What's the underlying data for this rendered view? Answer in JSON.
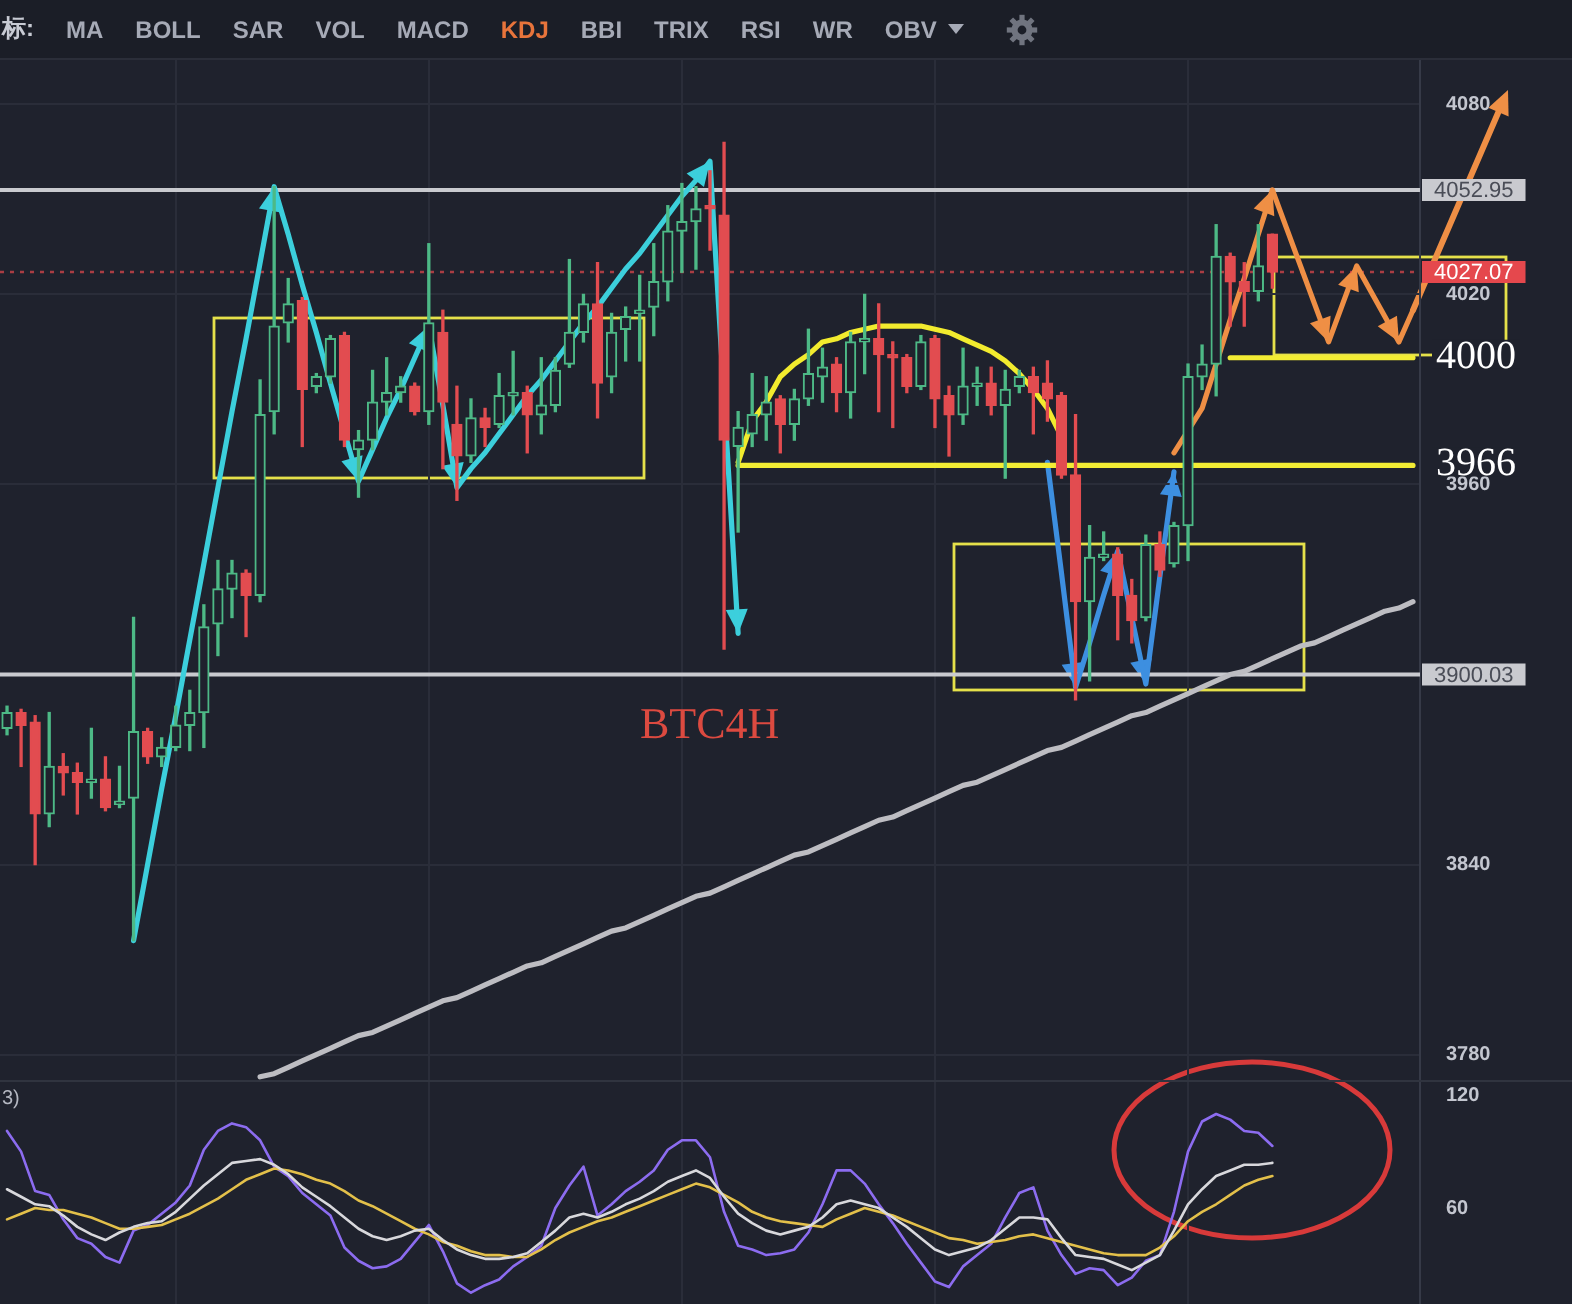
{
  "chart_data": [
    {
      "type": "other",
      "title": "标:",
      "categories": [
        "MA",
        "BOLL",
        "SAR",
        "VOL",
        "MACD",
        "KDJ",
        "BBI",
        "TRIX",
        "RSI",
        "WR",
        "OBV"
      ],
      "colors": [
        "#a6aab6",
        "#a6aab6",
        "#a6aab6",
        "#a6aab6",
        "#a6aab6",
        "#e8743b",
        "#a6aab6",
        "#a6aab6",
        "#a6aab6",
        "#a6aab6",
        "#a6aab6"
      ]
    },
    {
      "type": "candlestick",
      "categories": [
        null,
        null,
        null,
        null,
        null,
        null,
        null,
        null,
        null,
        null,
        null,
        null,
        null,
        null,
        null,
        null,
        null,
        null,
        null,
        null,
        null,
        null,
        null,
        null,
        null,
        null,
        null,
        null,
        null,
        null,
        null,
        null,
        null,
        null,
        null,
        null,
        null,
        null,
        null,
        null,
        null,
        null,
        null,
        null,
        null,
        null,
        null,
        null,
        null,
        null,
        null,
        null,
        null,
        null,
        null,
        null,
        null,
        null,
        null,
        null,
        null,
        null,
        null,
        null,
        null,
        null,
        null,
        null,
        null,
        null,
        null,
        null,
        null,
        null,
        null,
        null,
        null,
        null,
        null,
        null,
        null,
        null,
        null,
        null,
        null,
        null,
        null,
        null,
        null,
        null,
        null,
        null,
        null,
        null,
        null,
        null,
        null,
        null,
        null,
        null,
        null
      ],
      "ohlc": [
        [
          3883,
          3890,
          3881,
          3888
        ],
        [
          3888,
          3889,
          3871,
          3884
        ],
        [
          3885,
          3887,
          3840,
          3856
        ],
        [
          3856,
          3888,
          3852,
          3871
        ],
        [
          3871,
          3875,
          3862,
          3869
        ],
        [
          3869,
          3872,
          3856,
          3866
        ],
        [
          3866,
          3883,
          3861,
          3867
        ],
        [
          3867,
          3874,
          3857,
          3858
        ],
        [
          3859,
          3871,
          3858,
          3860
        ],
        [
          3861,
          3918,
          3816,
          3882
        ],
        [
          3882,
          3883,
          3872,
          3874
        ],
        [
          3874,
          3880,
          3871,
          3877
        ],
        [
          3877,
          3890,
          3876,
          3884
        ],
        [
          3884,
          3895,
          3876,
          3888
        ],
        [
          3888,
          3922,
          3877,
          3915
        ],
        [
          3916,
          3936,
          3906,
          3927
        ],
        [
          3927,
          3936,
          3918,
          3932
        ],
        [
          3932,
          3933,
          3912,
          3925
        ],
        [
          3925,
          3993,
          3923,
          3982
        ],
        [
          3983,
          4054,
          3976,
          4010
        ],
        [
          4011,
          4025,
          4005,
          4017
        ],
        [
          4018,
          4019,
          3972,
          3990
        ],
        [
          3991,
          3995,
          3989,
          3994
        ],
        [
          3994,
          4007,
          3992,
          4006
        ],
        [
          4007,
          4008,
          3972,
          3974
        ],
        [
          3971,
          3977,
          3956,
          3974
        ],
        [
          3974,
          3996,
          3971,
          3986
        ],
        [
          3986,
          4000,
          3982,
          3989
        ],
        [
          3989,
          3994,
          3986,
          3991
        ],
        [
          3991,
          3992,
          3982,
          3983
        ],
        [
          3983,
          4036,
          3979,
          4011
        ],
        [
          4008,
          4015,
          3965,
          3986
        ],
        [
          3979,
          3991,
          3955,
          3969
        ],
        [
          3969,
          3987,
          3967,
          3981
        ],
        [
          3981,
          3984,
          3972,
          3978
        ],
        [
          3979,
          3995,
          3978,
          3988
        ],
        [
          3988,
          4002,
          3982,
          3989
        ],
        [
          3989,
          3991,
          3970,
          3982
        ],
        [
          3982,
          4000,
          3976,
          3985
        ],
        [
          3985,
          4000,
          3983,
          3996
        ],
        [
          3998,
          4031,
          3997,
          4008
        ],
        [
          4008,
          4020,
          4005,
          4017
        ],
        [
          4017,
          4030,
          3981,
          3992
        ],
        [
          3994,
          4014,
          3989,
          4008
        ],
        [
          4009,
          4016,
          3999,
          4013
        ],
        [
          4014,
          4026,
          3999,
          4015
        ],
        [
          4016,
          4036,
          4007,
          4024
        ],
        [
          4024,
          4048,
          4018,
          4040
        ],
        [
          4040,
          4055,
          4027,
          4043
        ],
        [
          4043,
          4054,
          4028,
          4047
        ],
        [
          4048,
          4059,
          4034,
          4047
        ],
        [
          4045,
          4068,
          3908,
          3974
        ],
        [
          3972,
          3983,
          3945,
          3978
        ],
        [
          3976,
          3995,
          3972,
          3982
        ],
        [
          3982,
          3994,
          3974,
          3986
        ],
        [
          3987,
          3988,
          3970,
          3979
        ],
        [
          3979,
          3990,
          3974,
          3987
        ],
        [
          3987,
          4009,
          3985,
          3995
        ],
        [
          3994,
          4003,
          3986,
          3997
        ],
        [
          3998,
          4000,
          3983,
          3989
        ],
        [
          3989,
          4008,
          3981,
          4005
        ],
        [
          4005,
          4020,
          3995,
          4006
        ],
        [
          4006,
          4017,
          3983,
          4001
        ],
        [
          4001,
          4005,
          3978,
          4000
        ],
        [
          4000,
          4001,
          3989,
          3991
        ],
        [
          3991,
          4007,
          3990,
          4005
        ],
        [
          4006,
          4007,
          3978,
          3987
        ],
        [
          3988,
          3991,
          3969,
          3982
        ],
        [
          3982,
          4003,
          3979,
          3991
        ],
        [
          3991,
          3997,
          3985,
          3992
        ],
        [
          3992,
          3997,
          3982,
          3985
        ],
        [
          3985,
          3996,
          3962,
          3990
        ],
        [
          3991,
          3996,
          3989,
          3994
        ],
        [
          3994,
          3997,
          3976,
          3989
        ],
        [
          3992,
          3999,
          3980,
          3987
        ],
        [
          3988,
          3989,
          3962,
          3963
        ],
        [
          3963,
          3982,
          3892,
          3923
        ],
        [
          3923,
          3947,
          3898,
          3937
        ],
        [
          3937,
          3945,
          3936,
          3938
        ],
        [
          3938,
          3940,
          3911,
          3925
        ],
        [
          3925,
          3930,
          3910,
          3917
        ],
        [
          3918,
          3944,
          3917,
          3941
        ],
        [
          3941,
          3945,
          3931,
          3933
        ],
        [
          3935,
          3948,
          3934,
          3947
        ],
        [
          3947,
          3998,
          3936,
          3994
        ],
        [
          3994,
          4004,
          3990,
          3998
        ],
        [
          3998,
          4042,
          3988,
          4032
        ],
        [
          4032,
          4033,
          4010,
          4024
        ],
        [
          4024,
          4030,
          4010,
          4021
        ],
        [
          4021,
          4042,
          4018,
          4029
        ],
        [
          4039,
          4039,
          4022,
          4027.07
        ],
        null,
        null,
        null,
        null,
        null,
        null,
        null,
        null,
        null,
        null
      ],
      "colors": [
        "#4db986",
        "#e24c50",
        "#e24c50",
        "#4db986",
        "#e24c50",
        "#e24c50",
        "#4db986",
        "#e24c50",
        "#4db986",
        "#4db986",
        "#e24c50",
        "#4db986",
        "#4db986",
        "#4db986",
        "#4db986",
        "#4db986",
        "#4db986",
        "#e24c50",
        "#4db986",
        "#4db986",
        "#4db986",
        "#e24c50",
        "#4db986",
        "#4db986",
        "#e24c50",
        "#4db986",
        "#4db986",
        "#4db986",
        "#4db986",
        "#e24c50",
        "#4db986",
        "#e24c50",
        "#e24c50",
        "#4db986",
        "#e24c50",
        "#4db986",
        "#4db986",
        "#e24c50",
        "#4db986",
        "#4db986",
        "#4db986",
        "#4db986",
        "#e24c50",
        "#4db986",
        "#4db986",
        "#4db986",
        "#4db986",
        "#4db986",
        "#4db986",
        "#4db986",
        "#e24c50",
        "#e24c50",
        "#4db986",
        "#4db986",
        "#4db986",
        "#e24c50",
        "#4db986",
        "#4db986",
        "#4db986",
        "#e24c50",
        "#4db986",
        "#4db986",
        "#e24c50",
        "#e24c50",
        "#e24c50",
        "#4db986",
        "#e24c50",
        "#e24c50",
        "#4db986",
        "#4db986",
        "#e24c50",
        "#4db986",
        "#4db986",
        "#e24c50",
        "#e24c50",
        "#e24c50",
        "#e24c50",
        "#4db986",
        "#4db986",
        "#e24c50",
        "#e24c50",
        "#4db986",
        "#e24c50",
        "#4db986",
        "#4db986",
        "#4db986",
        "#4db986",
        "#e24c50",
        "#e24c50",
        "#4db986",
        "#e24c50",
        null,
        null,
        null,
        null,
        null,
        null,
        null,
        null,
        null,
        null
      ],
      "ylim": [
        3772,
        4094
      ],
      "yticks": [
        3780,
        3840,
        3960,
        4020,
        4080
      ],
      "grid": true,
      "tick_labels": "y",
      "marker": "none",
      "ref_lines": [
        {
          "axis": "y",
          "value": 4052.95,
          "label": "4052.95",
          "color": "#c9cacf"
        },
        {
          "axis": "y",
          "value": 4027.07,
          "label": "4027.07",
          "color": "#e5484d",
          "line_style": "dotted"
        },
        {
          "axis": "y",
          "value": 3900.03,
          "label": "3900.03",
          "color": "#c9cacf"
        }
      ],
      "series": [
        {
          "type": "line",
          "name": "3966",
          "color": "#f2ec34",
          "values": [
            null,
            null,
            null,
            null,
            null,
            null,
            null,
            null,
            null,
            null,
            null,
            null,
            null,
            null,
            null,
            null,
            null,
            null,
            null,
            null,
            null,
            null,
            null,
            null,
            null,
            null,
            null,
            null,
            null,
            null,
            null,
            null,
            null,
            null,
            null,
            null,
            null,
            null,
            null,
            null,
            null,
            null,
            null,
            null,
            null,
            null,
            null,
            null,
            null,
            null,
            null,
            null,
            3966,
            3966,
            3966,
            3966,
            3966,
            3966,
            3966,
            3966,
            3966,
            3966,
            3966,
            3966,
            3966,
            3966,
            3966,
            3966,
            3966,
            3966,
            3966,
            3966,
            3966,
            3966,
            3966,
            3966,
            3966,
            3966,
            3966,
            3966,
            3966,
            3966,
            3966,
            3966,
            3966,
            3966,
            3966,
            3966,
            3966,
            3966,
            3966,
            3966,
            3966,
            3966,
            3966,
            3966,
            3966,
            3966,
            3966,
            3966,
            3966
          ]
        },
        {
          "type": "line",
          "name": "4000",
          "color": "#f2ec34",
          "values": [
            null,
            null,
            null,
            null,
            null,
            null,
            null,
            null,
            null,
            null,
            null,
            null,
            null,
            null,
            null,
            null,
            null,
            null,
            null,
            null,
            null,
            null,
            null,
            null,
            null,
            null,
            null,
            null,
            null,
            null,
            null,
            null,
            null,
            null,
            null,
            null,
            null,
            null,
            null,
            null,
            null,
            null,
            null,
            null,
            null,
            null,
            null,
            null,
            null,
            null,
            null,
            null,
            null,
            null,
            null,
            null,
            null,
            null,
            null,
            null,
            null,
            null,
            null,
            null,
            null,
            null,
            null,
            null,
            null,
            null,
            null,
            null,
            null,
            null,
            null,
            null,
            null,
            null,
            null,
            null,
            null,
            null,
            null,
            null,
            null,
            null,
            null,
            4000,
            4000,
            4000,
            4000,
            4000,
            4000,
            4000,
            4000,
            4000,
            4000,
            4000,
            4000,
            4000,
            4000
          ]
        },
        {
          "type": "line",
          "color": "#bdbdc2",
          "values": [
            null,
            null,
            null,
            null,
            null,
            null,
            null,
            null,
            null,
            null,
            null,
            null,
            null,
            null,
            null,
            null,
            null,
            null,
            3773,
            3774,
            3776,
            3778,
            3780,
            3782,
            3784,
            3786,
            3787,
            3789,
            3791,
            3793,
            3795,
            3797,
            3798,
            3800,
            3802,
            3804,
            3806,
            3808,
            3809,
            3811,
            3813,
            3815,
            3817,
            3819,
            3820,
            3822,
            3824,
            3826,
            3828,
            3830,
            3831,
            3833,
            3835,
            3837,
            3839,
            3841,
            3843,
            3844,
            3846,
            3848,
            3850,
            3852,
            3854,
            3855,
            3857,
            3859,
            3861,
            3863,
            3865,
            3866,
            3868,
            3870,
            3872,
            3874,
            3876,
            3877,
            3879,
            3881,
            3883,
            3885,
            3887,
            3888,
            3890,
            3892,
            3894,
            3896,
            3898,
            3900,
            3901,
            3903,
            3905,
            3907,
            3909,
            3910,
            3912,
            3914,
            3916,
            3918,
            3920,
            3921,
            3923
          ]
        },
        {
          "type": "line",
          "color": "#f2eb2e",
          "values": [
            null,
            null,
            null,
            null,
            null,
            null,
            null,
            null,
            null,
            null,
            null,
            null,
            null,
            null,
            null,
            null,
            null,
            null,
            null,
            null,
            null,
            null,
            null,
            null,
            null,
            null,
            null,
            null,
            null,
            null,
            null,
            null,
            null,
            null,
            null,
            null,
            null,
            null,
            null,
            null,
            null,
            null,
            null,
            null,
            null,
            null,
            null,
            null,
            null,
            null,
            null,
            null,
            3967,
            3980,
            3986,
            3994,
            3998,
            4001,
            4005,
            4006,
            4008,
            4009,
            4010,
            4010,
            4010,
            4010,
            4009,
            4008,
            4006,
            4004,
            4002,
            3999,
            3995,
            3990,
            3984,
            3975,
            null,
            null,
            null,
            null,
            null,
            null,
            null,
            null,
            null,
            null,
            null,
            null,
            null,
            null,
            null,
            null,
            null,
            null,
            null,
            null,
            null,
            null,
            null,
            null,
            null
          ]
        },
        {
          "type": "line",
          "color": "#3ccfdc",
          "values": [
            null,
            null,
            null,
            null,
            null,
            null,
            null,
            null,
            null,
            3816,
            3840,
            3864,
            3887,
            3911,
            3935,
            3959,
            3983,
            4006,
            4030,
            4054,
            4039,
            4023,
            4008,
            3992,
            null,
            3961,
            3971,
            3981,
            3990,
            4000,
            4010,
            3985,
            3959,
            3965,
            3970,
            3976,
            3982,
            3988,
            3993,
            3999,
            4005,
            4011,
            4016,
            4022,
            4028,
            4033,
            4039,
            4045,
            4051,
            4056,
            4062,
            null,
            3913,
            null,
            null,
            null,
            null,
            null,
            null,
            null,
            null,
            null,
            null,
            null,
            null,
            null,
            null,
            null,
            null,
            null,
            null,
            null,
            null,
            null,
            null,
            null,
            null,
            null,
            null,
            null,
            null,
            null,
            null,
            null,
            null,
            null,
            null,
            null,
            null,
            null,
            null,
            null,
            null,
            null,
            null,
            null,
            null,
            null,
            null,
            null,
            null
          ]
        },
        {
          "type": "line",
          "color": "#3d8fe0",
          "values": [
            null,
            null,
            null,
            null,
            null,
            null,
            null,
            null,
            null,
            null,
            null,
            null,
            null,
            null,
            null,
            null,
            null,
            null,
            null,
            null,
            null,
            null,
            null,
            null,
            null,
            null,
            null,
            null,
            null,
            null,
            null,
            null,
            null,
            null,
            null,
            null,
            null,
            null,
            null,
            null,
            null,
            null,
            null,
            null,
            null,
            null,
            null,
            null,
            null,
            null,
            null,
            null,
            null,
            null,
            null,
            null,
            null,
            null,
            null,
            null,
            null,
            null,
            null,
            null,
            null,
            null,
            null,
            null,
            null,
            null,
            null,
            null,
            null,
            null,
            3967,
            3932,
            3896,
            3910,
            3925,
            3939,
            3918,
            3897,
            3931,
            3964,
            null,
            null,
            null,
            null,
            null,
            null,
            null,
            null,
            null,
            null,
            null,
            null,
            null,
            null,
            null,
            null,
            null
          ]
        },
        {
          "type": "line",
          "color": "#ef8f45",
          "values": [
            null,
            null,
            null,
            null,
            null,
            null,
            null,
            null,
            null,
            null,
            null,
            null,
            null,
            null,
            null,
            null,
            null,
            null,
            null,
            null,
            null,
            null,
            null,
            null,
            null,
            null,
            null,
            null,
            null,
            null,
            null,
            null,
            null,
            null,
            null,
            null,
            null,
            null,
            null,
            null,
            null,
            null,
            null,
            null,
            null,
            null,
            null,
            null,
            null,
            null,
            null,
            null,
            null,
            null,
            null,
            null,
            null,
            null,
            null,
            null,
            null,
            null,
            null,
            null,
            null,
            null,
            null,
            null,
            null,
            null,
            null,
            null,
            null,
            null,
            null,
            null,
            null,
            null,
            null,
            null,
            null,
            null,
            null,
            3970,
            null,
            3984,
            3998,
            4012,
            4025,
            4039,
            4053,
            4041,
            4029,
            4017,
            4005,
            4017,
            4029,
            4021,
            4013,
            4005,
            4015
          ]
        }
      ],
      "annotations": [
        "BTC4H"
      ]
    },
    {
      "type": "line",
      "title": "3)",
      "categories": [
        null,
        null,
        null,
        null,
        null,
        null,
        null,
        null,
        null,
        null,
        null,
        null,
        null,
        null,
        null,
        null,
        null,
        null,
        null,
        null,
        null,
        null,
        null,
        null,
        null,
        null,
        null,
        null,
        null,
        null,
        null,
        null,
        null,
        null,
        null,
        null,
        null,
        null,
        null,
        null,
        null,
        null,
        null,
        null,
        null,
        null,
        null,
        null,
        null,
        null,
        null,
        null,
        null,
        null,
        null,
        null,
        null,
        null,
        null,
        null,
        null,
        null,
        null,
        null,
        null,
        null,
        null,
        null,
        null,
        null,
        null,
        null,
        null,
        null,
        null,
        null,
        null,
        null,
        null,
        null,
        null,
        null,
        null,
        null,
        null,
        null,
        null,
        null,
        null,
        null,
        null,
        null,
        null,
        null,
        null,
        null,
        null,
        null,
        null,
        null,
        null
      ],
      "series": [
        {
          "color": "#d8d8dc",
          "values": [
            70,
            66,
            62,
            61,
            56,
            50,
            46,
            43,
            47,
            50,
            52,
            53,
            58,
            65,
            72,
            78,
            84,
            85,
            86,
            83,
            78,
            71,
            66,
            61,
            55,
            49,
            45,
            43,
            45,
            48,
            49,
            43,
            38,
            35,
            33,
            33,
            34,
            36,
            42,
            48,
            55,
            57,
            55,
            58,
            62,
            65,
            69,
            74,
            77,
            80,
            76,
            66,
            57,
            52,
            48,
            46,
            48,
            50,
            55,
            62,
            64,
            62,
            60,
            55,
            50,
            44,
            38,
            35,
            37,
            39,
            43,
            49,
            55,
            55,
            54,
            44,
            35,
            34,
            33,
            30,
            27,
            31,
            35,
            48,
            62,
            70,
            77,
            80,
            83,
            83,
            84,
            null,
            null,
            null,
            null,
            null,
            null,
            null,
            null,
            null,
            null
          ]
        },
        {
          "color": "#e3c04a",
          "values": [
            54,
            57,
            60,
            59,
            59,
            57,
            55,
            52,
            49,
            49,
            50,
            51,
            54,
            57,
            61,
            65,
            70,
            75,
            78,
            81,
            80,
            78,
            75,
            73,
            69,
            64,
            61,
            57,
            53,
            49,
            46,
            42,
            40,
            37,
            35,
            35,
            34,
            34,
            38,
            43,
            47,
            50,
            53,
            55,
            58,
            61,
            64,
            67,
            70,
            73,
            71,
            67,
            63,
            58,
            55,
            53,
            52,
            51,
            50,
            54,
            57,
            60,
            58,
            56,
            53,
            50,
            47,
            44,
            43,
            41,
            42,
            43,
            45,
            46,
            44,
            42,
            40,
            38,
            36,
            35,
            35,
            35,
            39,
            45,
            53,
            58,
            62,
            67,
            72,
            75,
            77,
            null,
            null,
            null,
            null,
            null,
            null,
            null,
            null,
            null,
            null
          ]
        },
        {
          "color": "#8c6cf0",
          "values": [
            101,
            90,
            69,
            67,
            54,
            44,
            41,
            34,
            31,
            48,
            51,
            57,
            63,
            72,
            91,
            101,
            105,
            103,
            96,
            82,
            77,
            68,
            62,
            56,
            39,
            32,
            28,
            29,
            33,
            42,
            51,
            37,
            20,
            15,
            19,
            22,
            29,
            34,
            40,
            60,
            72,
            82,
            56,
            62,
            69,
            74,
            80,
            91,
            96,
            96,
            87,
            58,
            40,
            38,
            35,
            36,
            38,
            47,
            62,
            80,
            80,
            73,
            62,
            52,
            41,
            31,
            21,
            18,
            29,
            35,
            41,
            55,
            68,
            71,
            48,
            35,
            25,
            28,
            27,
            19,
            23,
            32,
            35,
            58,
            90,
            106,
            110,
            107,
            101,
            100,
            93,
            null,
            null,
            null,
            null,
            null,
            null,
            null,
            null,
            null,
            null
          ]
        }
      ],
      "ylim": [
        9,
        127
      ],
      "yticks": [
        60,
        120
      ],
      "grid": "x",
      "tick_labels": "y",
      "marker": "none"
    }
  ]
}
